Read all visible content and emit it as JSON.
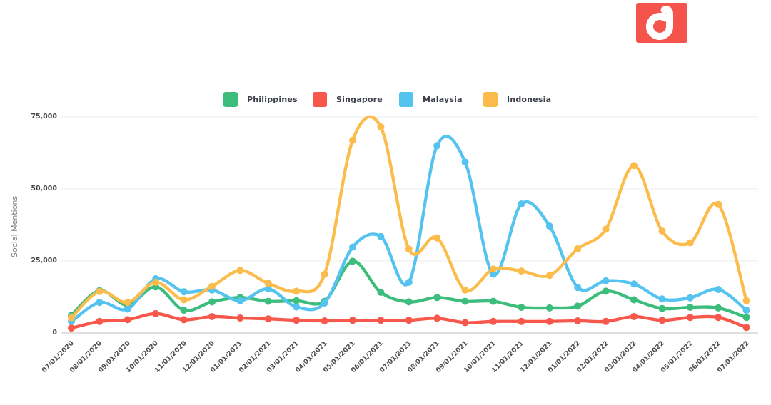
{
  "logo": {
    "icon": "digimind-d-icon",
    "color": "#f4544c"
  },
  "chart_data": {
    "type": "line",
    "title": "",
    "xlabel": "",
    "ylabel": "Social Mentions",
    "ylim": [
      0,
      75000
    ],
    "yticks": [
      0,
      25000,
      50000,
      75000
    ],
    "ytick_labels": [
      "0",
      "25,000",
      "50,000",
      "75,000"
    ],
    "grid": true,
    "legend_position": "top",
    "x": [
      "07/01/2020",
      "08/01/2020",
      "09/01/2020",
      "10/01/2020",
      "11/01/2020",
      "12/01/2020",
      "01/01/2021",
      "02/01/2021",
      "03/01/2021",
      "04/01/2021",
      "05/01/2021",
      "06/01/2021",
      "07/01/2021",
      "08/01/2021",
      "09/01/2021",
      "10/01/2021",
      "11/01/2021",
      "12/01/2021",
      "01/01/2022",
      "02/01/2022",
      "03/01/2022",
      "04/01/2022",
      "05/01/2022",
      "06/01/2022",
      "07/01/2022"
    ],
    "series": [
      {
        "name": "Philippines",
        "color": "#3cbd7c",
        "values": [
          6100,
          14700,
          9700,
          16000,
          7900,
          10800,
          12300,
          11000,
          11200,
          11000,
          24900,
          14100,
          10800,
          12300,
          11000,
          11000,
          8900,
          8700,
          9300,
          14500,
          11500,
          8500,
          8900,
          8700,
          5400
        ]
      },
      {
        "name": "Singapore",
        "color": "#f8574b",
        "values": [
          1700,
          4000,
          4600,
          6700,
          4600,
          5700,
          5200,
          4900,
          4400,
          4200,
          4400,
          4400,
          4400,
          5100,
          3600,
          4000,
          4000,
          4000,
          4200,
          4000,
          5700,
          4400,
          5400,
          5400,
          1900
        ]
      },
      {
        "name": "Malaysia",
        "color": "#54c3f0",
        "values": [
          4000,
          10600,
          8300,
          18800,
          14300,
          14900,
          11200,
          15300,
          9000,
          10400,
          29800,
          33500,
          17600,
          65000,
          59300,
          20400,
          44800,
          37100,
          15800,
          18100,
          17000,
          11800,
          12200,
          15100,
          7900
        ]
      },
      {
        "name": "Indonesia",
        "color": "#fbbc4c",
        "values": [
          5300,
          14400,
          10600,
          17600,
          11500,
          16200,
          21700,
          17200,
          14500,
          20400,
          66900,
          71500,
          29100,
          33000,
          14900,
          22200,
          21500,
          20000,
          29200,
          36000,
          58100,
          35400,
          31300,
          44600,
          11200
        ]
      }
    ]
  }
}
